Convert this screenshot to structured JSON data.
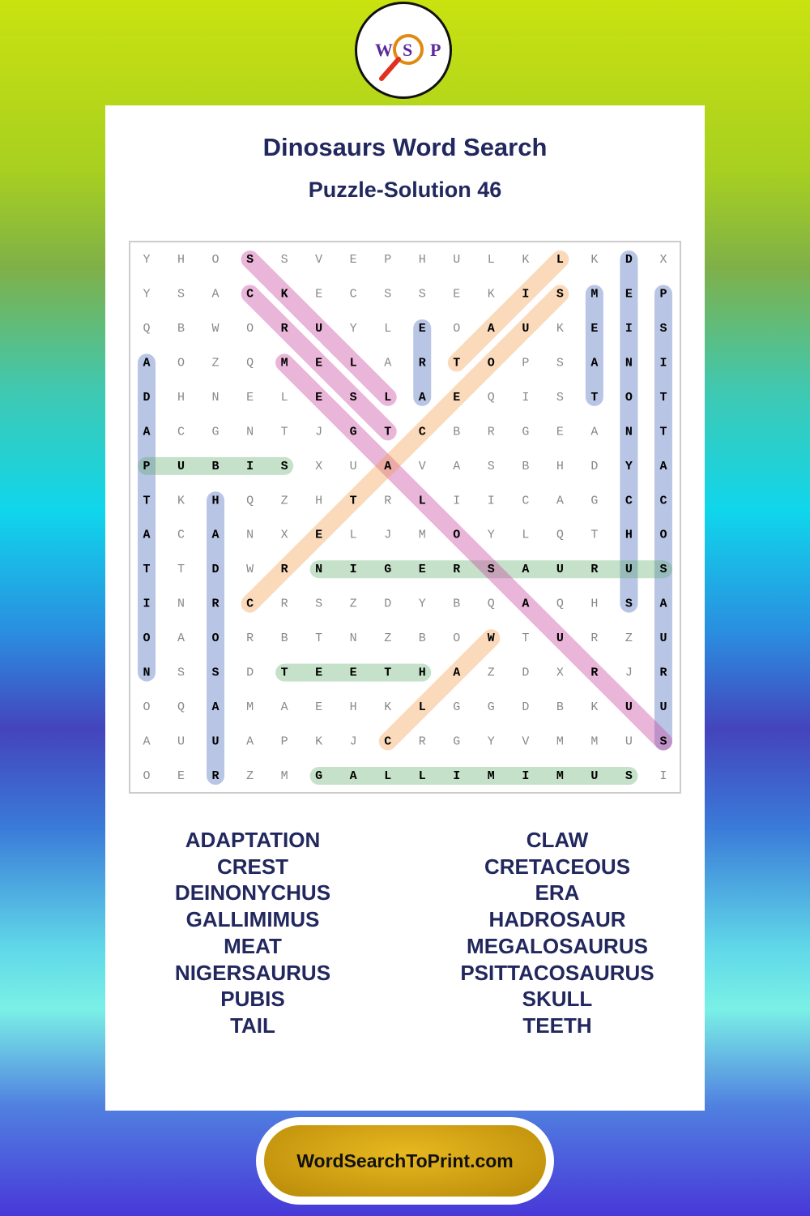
{
  "header": {
    "logo": [
      "W",
      "S",
      "P"
    ],
    "title": "Dinosaurs Word Search",
    "subtitle": "Puzzle-Solution 46"
  },
  "grid": [
    [
      "Y",
      "H",
      "O",
      "S",
      "S",
      "V",
      "E",
      "P",
      "H",
      "U",
      "L",
      "K",
      "L",
      "K",
      "D",
      "X"
    ],
    [
      "Y",
      "S",
      "A",
      "C",
      "K",
      "E",
      "C",
      "S",
      "S",
      "E",
      "K",
      "I",
      "S",
      "M",
      "E",
      "P"
    ],
    [
      "Q",
      "B",
      "W",
      "O",
      "R",
      "U",
      "Y",
      "L",
      "E",
      "O",
      "A",
      "U",
      "K",
      "E",
      "I",
      "S"
    ],
    [
      "A",
      "O",
      "Z",
      "Q",
      "M",
      "E",
      "L",
      "A",
      "R",
      "T",
      "O",
      "P",
      "S",
      "A",
      "N",
      "I"
    ],
    [
      "D",
      "H",
      "N",
      "E",
      "L",
      "E",
      "S",
      "L",
      "A",
      "E",
      "Q",
      "I",
      "S",
      "T",
      "O",
      "T"
    ],
    [
      "A",
      "C",
      "G",
      "N",
      "T",
      "J",
      "G",
      "T",
      "C",
      "B",
      "R",
      "G",
      "E",
      "A",
      "N",
      "T"
    ],
    [
      "P",
      "U",
      "B",
      "I",
      "S",
      "X",
      "U",
      "A",
      "V",
      "A",
      "S",
      "B",
      "H",
      "D",
      "Y",
      "A"
    ],
    [
      "T",
      "K",
      "H",
      "Q",
      "Z",
      "H",
      "T",
      "R",
      "L",
      "I",
      "I",
      "C",
      "A",
      "G",
      "C",
      "C"
    ],
    [
      "A",
      "C",
      "A",
      "N",
      "X",
      "E",
      "L",
      "J",
      "M",
      "O",
      "Y",
      "L",
      "Q",
      "T",
      "H",
      "O"
    ],
    [
      "T",
      "T",
      "D",
      "W",
      "R",
      "N",
      "I",
      "G",
      "E",
      "R",
      "S",
      "A",
      "U",
      "R",
      "U",
      "S"
    ],
    [
      "I",
      "N",
      "R",
      "C",
      "R",
      "S",
      "Z",
      "D",
      "Y",
      "B",
      "Q",
      "A",
      "Q",
      "H",
      "S",
      "A"
    ],
    [
      "O",
      "A",
      "O",
      "R",
      "B",
      "T",
      "N",
      "Z",
      "B",
      "O",
      "W",
      "T",
      "U",
      "R",
      "Z",
      "U"
    ],
    [
      "N",
      "S",
      "S",
      "D",
      "T",
      "E",
      "E",
      "T",
      "H",
      "A",
      "Z",
      "D",
      "X",
      "R",
      "J",
      "R"
    ],
    [
      "O",
      "Q",
      "A",
      "M",
      "A",
      "E",
      "H",
      "K",
      "L",
      "G",
      "G",
      "D",
      "B",
      "K",
      "U",
      "U"
    ],
    [
      "A",
      "U",
      "U",
      "A",
      "P",
      "K",
      "J",
      "C",
      "R",
      "G",
      "Y",
      "V",
      "M",
      "M",
      "U",
      "S"
    ],
    [
      "O",
      "E",
      "R",
      "Z",
      "M",
      "G",
      "A",
      "L",
      "L",
      "I",
      "M",
      "I",
      "M",
      "U",
      "S",
      "I"
    ]
  ],
  "words_left": [
    "ADAPTATION",
    "CREST",
    "DEINONYCHUS",
    "GALLIMIMUS",
    "MEAT",
    "NIGERSAURUS",
    "PUBIS",
    "TAIL"
  ],
  "words_right": [
    "CLAW",
    "CRETACEOUS",
    "ERA",
    "HADROSAUR",
    "MEGALOSAURUS",
    "PSITTACOSAURUS",
    "SKULL",
    "TEETH"
  ],
  "footer": "WordSearchToPrint.com"
}
